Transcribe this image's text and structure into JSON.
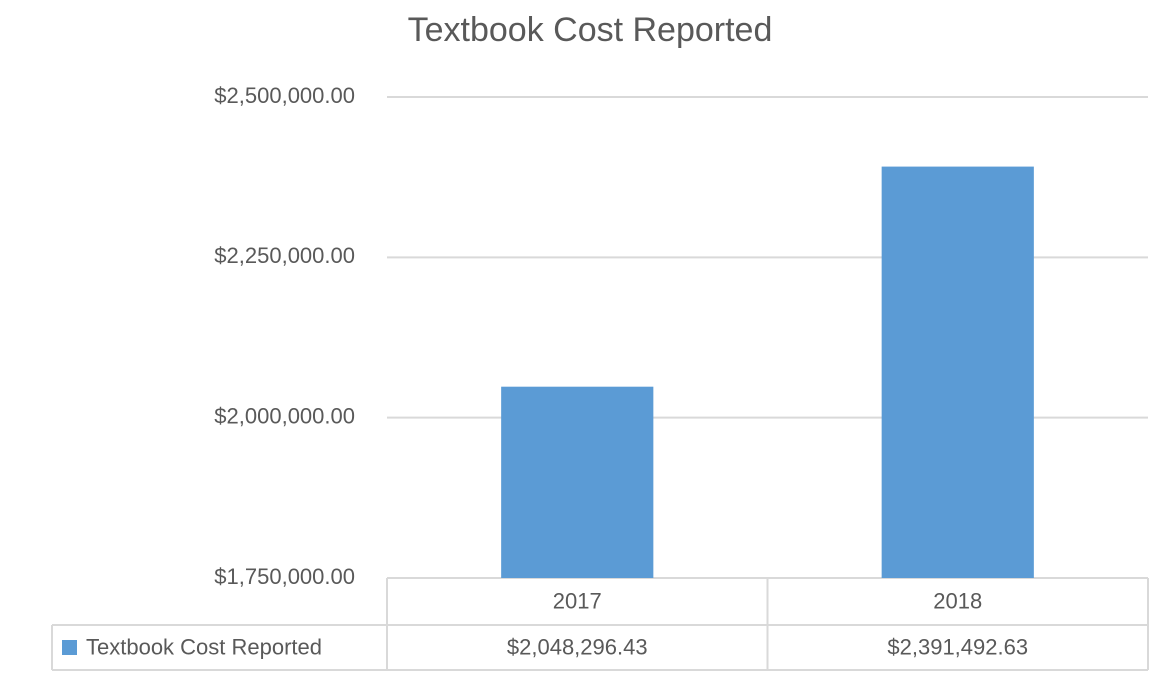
{
  "chart_data": {
    "type": "bar",
    "title": "Textbook Cost Reported",
    "categories": [
      "2017",
      "2018"
    ],
    "series": [
      {
        "name": "Textbook Cost Reported",
        "color": "#5b9bd5",
        "values": [
          2048296.43,
          2391492.63
        ],
        "value_labels": [
          "$2,048,296.43",
          "$2,391,492.63"
        ]
      }
    ],
    "ylim": [
      1750000,
      2500000
    ],
    "yticks": [
      {
        "value": 1750000,
        "label": "$1,750,000.00"
      },
      {
        "value": 2000000,
        "label": "$2,000,000.00"
      },
      {
        "value": 2250000,
        "label": "$2,250,000.00"
      },
      {
        "value": 2500000,
        "label": "$2,500,000.00"
      }
    ],
    "grid": true,
    "data_table": true
  }
}
